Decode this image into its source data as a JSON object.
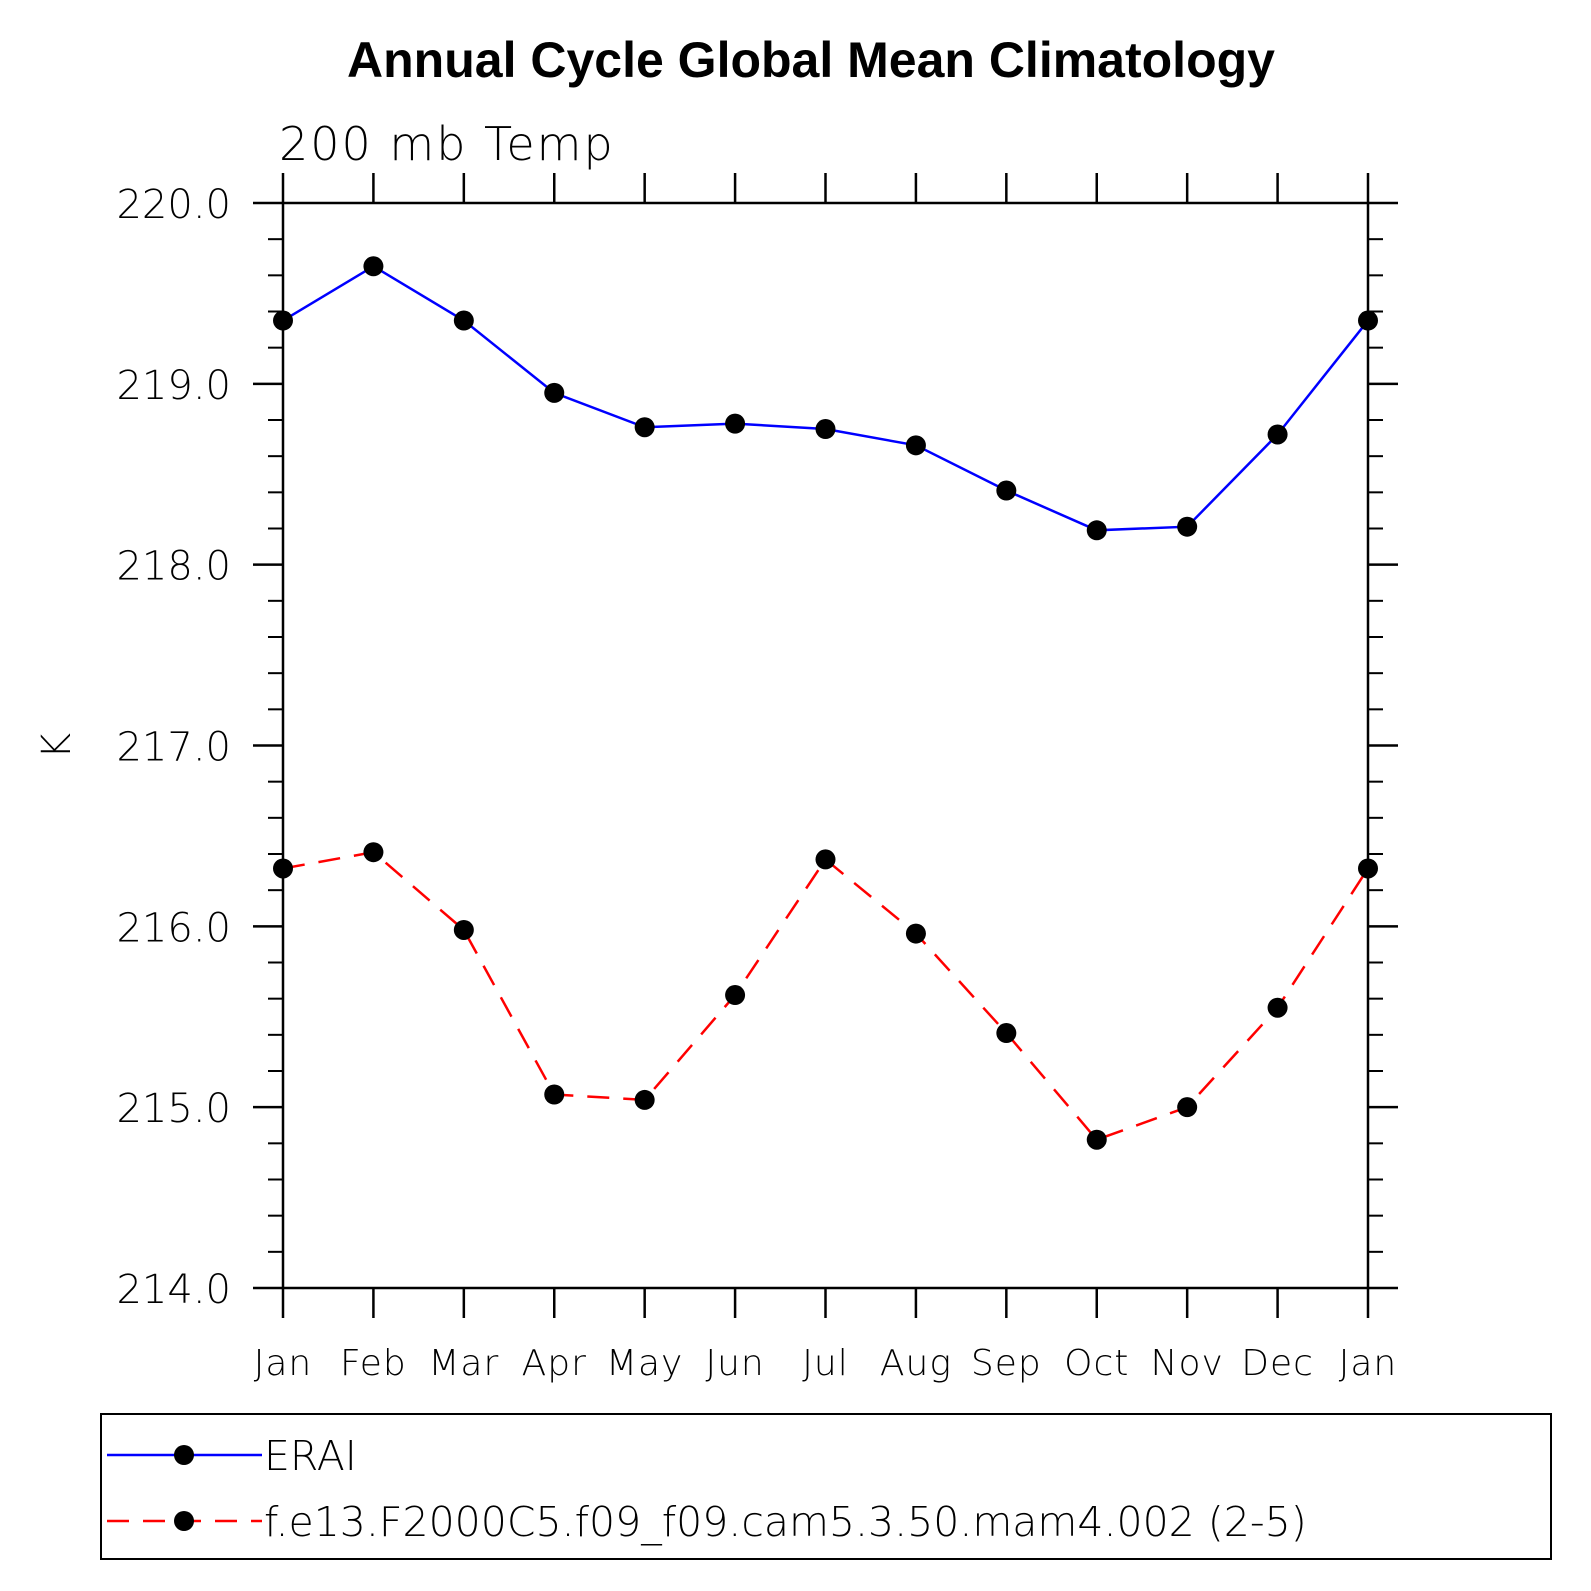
{
  "chart_data": {
    "type": "line",
    "title": "Annual Cycle Global Mean Climatology",
    "subtitle": "200 mb Temp",
    "ylabel": "K",
    "xlabel": "",
    "ylim": [
      214.0,
      220.0
    ],
    "yticks": [
      "214.0",
      "215.0",
      "216.0",
      "217.0",
      "218.0",
      "219.0",
      "220.0"
    ],
    "categories": [
      "Jan",
      "Feb",
      "Mar",
      "Apr",
      "May",
      "Jun",
      "Jul",
      "Aug",
      "Sep",
      "Oct",
      "Nov",
      "Dec",
      "Jan"
    ],
    "series": [
      {
        "name": "ERAI",
        "color": "#0000ff",
        "style": "solid",
        "marker": "dot",
        "values": [
          219.35,
          219.65,
          219.35,
          218.95,
          218.76,
          218.78,
          218.75,
          218.66,
          218.41,
          218.19,
          218.21,
          218.72,
          219.35
        ]
      },
      {
        "name": "f.e13.F2000C5.f09_f09.cam5.3.50.mam4.002 (2-5)",
        "color": "#ff0000",
        "style": "dashed",
        "marker": "dot",
        "values": [
          216.32,
          216.41,
          215.98,
          215.07,
          215.04,
          215.62,
          216.37,
          215.96,
          215.41,
          214.82,
          215.0,
          215.55,
          216.32
        ]
      }
    ],
    "legend": "bottom",
    "grid": false
  }
}
